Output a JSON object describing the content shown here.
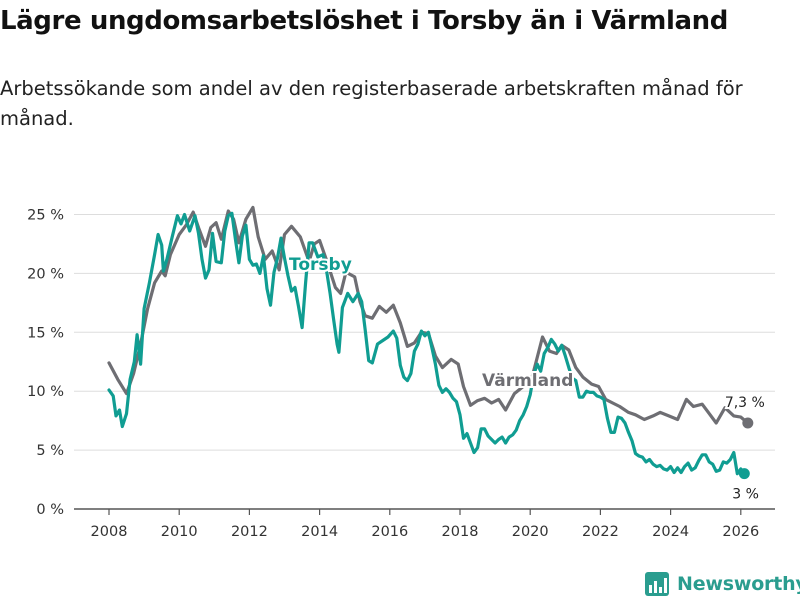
{
  "title": "Lägre ungdomsarbetslöshet i Torsby än i Värmland",
  "subtitle": "Arbetssökande som andel av den registerbaserade arbetskraften månad för månad.",
  "brand": {
    "name": "Newsworthy",
    "icon": "newsworthy-logo-icon",
    "color": "#2a9d8f"
  },
  "chart_data": {
    "type": "line",
    "xlim": [
      2007.5,
      2026.8
    ],
    "ylim": [
      0,
      26
    ],
    "x_ticks": [
      2008,
      2010,
      2012,
      2014,
      2016,
      2018,
      2020,
      2022,
      2024,
      2026
    ],
    "x_tick_labels": [
      "2008",
      "2010",
      "2012",
      "2014",
      "2016",
      "2018",
      "2020",
      "2022",
      "2024",
      "2026"
    ],
    "y_ticks": [
      0,
      5,
      10,
      15,
      20,
      25
    ],
    "y_tick_labels": [
      "0 %",
      "5 %",
      "10 %",
      "15 %",
      "20 %",
      "25 %"
    ],
    "grid": "horizontal",
    "series": [
      {
        "name": "Värmland",
        "color": "#6e6e73",
        "end_label": "7,3 %",
        "points": [
          [
            2008.0,
            12.4
          ],
          [
            2008.25,
            11.0
          ],
          [
            2008.5,
            9.8
          ],
          [
            2008.7,
            11.5
          ],
          [
            2008.9,
            14.0
          ],
          [
            2009.1,
            17.0
          ],
          [
            2009.3,
            19.2
          ],
          [
            2009.5,
            20.2
          ],
          [
            2009.6,
            19.8
          ],
          [
            2009.75,
            21.6
          ],
          [
            2010.0,
            23.3
          ],
          [
            2010.2,
            24.1
          ],
          [
            2010.4,
            25.2
          ],
          [
            2010.55,
            23.9
          ],
          [
            2010.75,
            22.3
          ],
          [
            2010.9,
            23.9
          ],
          [
            2011.05,
            24.3
          ],
          [
            2011.2,
            22.9
          ],
          [
            2011.4,
            25.3
          ],
          [
            2011.55,
            24.6
          ],
          [
            2011.7,
            22.6
          ],
          [
            2011.9,
            24.6
          ],
          [
            2012.1,
            25.6
          ],
          [
            2012.25,
            23.1
          ],
          [
            2012.45,
            21.2
          ],
          [
            2012.65,
            21.9
          ],
          [
            2012.85,
            20.3
          ],
          [
            2013.0,
            23.3
          ],
          [
            2013.2,
            24.0
          ],
          [
            2013.45,
            23.1
          ],
          [
            2013.7,
            21.0
          ],
          [
            2013.85,
            22.5
          ],
          [
            2014.0,
            22.8
          ],
          [
            2014.2,
            21.1
          ],
          [
            2014.45,
            18.8
          ],
          [
            2014.6,
            18.3
          ],
          [
            2014.75,
            20.1
          ],
          [
            2015.0,
            19.7
          ],
          [
            2015.15,
            17.6
          ],
          [
            2015.3,
            16.4
          ],
          [
            2015.5,
            16.2
          ],
          [
            2015.7,
            17.2
          ],
          [
            2015.9,
            16.7
          ],
          [
            2016.1,
            17.3
          ],
          [
            2016.3,
            15.8
          ],
          [
            2016.5,
            13.8
          ],
          [
            2016.7,
            14.1
          ],
          [
            2016.9,
            15.0
          ],
          [
            2017.1,
            14.9
          ],
          [
            2017.3,
            13.0
          ],
          [
            2017.5,
            12.0
          ],
          [
            2017.75,
            12.7
          ],
          [
            2017.95,
            12.3
          ],
          [
            2018.1,
            10.4
          ],
          [
            2018.3,
            8.8
          ],
          [
            2018.5,
            9.2
          ],
          [
            2018.7,
            9.4
          ],
          [
            2018.9,
            9.0
          ],
          [
            2019.1,
            9.3
          ],
          [
            2019.3,
            8.4
          ],
          [
            2019.55,
            9.8
          ],
          [
            2019.8,
            10.4
          ],
          [
            2020.0,
            10.6
          ],
          [
            2020.15,
            12.3
          ],
          [
            2020.35,
            14.6
          ],
          [
            2020.55,
            13.4
          ],
          [
            2020.75,
            13.2
          ],
          [
            2020.9,
            13.9
          ],
          [
            2021.1,
            13.5
          ],
          [
            2021.3,
            12.0
          ],
          [
            2021.5,
            11.2
          ],
          [
            2021.75,
            10.6
          ],
          [
            2021.95,
            10.4
          ],
          [
            2022.15,
            9.3
          ],
          [
            2022.35,
            9.0
          ],
          [
            2022.55,
            8.7
          ],
          [
            2022.8,
            8.2
          ],
          [
            2023.0,
            8.0
          ],
          [
            2023.25,
            7.6
          ],
          [
            2023.5,
            7.9
          ],
          [
            2023.7,
            8.2
          ],
          [
            2023.95,
            7.9
          ],
          [
            2024.2,
            7.6
          ],
          [
            2024.45,
            9.3
          ],
          [
            2024.65,
            8.7
          ],
          [
            2024.9,
            8.9
          ],
          [
            2025.1,
            8.1
          ],
          [
            2025.3,
            7.3
          ],
          [
            2025.55,
            8.6
          ],
          [
            2025.8,
            7.9
          ],
          [
            2026.0,
            7.8
          ],
          [
            2026.2,
            7.3
          ]
        ]
      },
      {
        "name": "Torsby",
        "color": "#109d92",
        "end_label": "3 %",
        "points": [
          [
            2008.0,
            10.1
          ],
          [
            2008.12,
            9.6
          ],
          [
            2008.2,
            7.9
          ],
          [
            2008.3,
            8.4
          ],
          [
            2008.38,
            7.0
          ],
          [
            2008.5,
            8.1
          ],
          [
            2008.6,
            11.0
          ],
          [
            2008.72,
            12.5
          ],
          [
            2008.8,
            14.8
          ],
          [
            2008.9,
            12.3
          ],
          [
            2009.0,
            17.0
          ],
          [
            2009.15,
            19.2
          ],
          [
            2009.3,
            21.6
          ],
          [
            2009.4,
            23.3
          ],
          [
            2009.5,
            22.4
          ],
          [
            2009.55,
            20.2
          ],
          [
            2009.65,
            21.2
          ],
          [
            2009.8,
            23.1
          ],
          [
            2009.95,
            24.9
          ],
          [
            2010.05,
            24.2
          ],
          [
            2010.15,
            25.0
          ],
          [
            2010.3,
            23.6
          ],
          [
            2010.45,
            24.9
          ],
          [
            2010.55,
            23.4
          ],
          [
            2010.65,
            21.2
          ],
          [
            2010.75,
            19.6
          ],
          [
            2010.85,
            20.3
          ],
          [
            2010.95,
            23.4
          ],
          [
            2011.05,
            21.0
          ],
          [
            2011.2,
            20.9
          ],
          [
            2011.3,
            23.6
          ],
          [
            2011.4,
            24.9
          ],
          [
            2011.5,
            25.1
          ],
          [
            2011.6,
            22.9
          ],
          [
            2011.7,
            20.9
          ],
          [
            2011.8,
            23.2
          ],
          [
            2011.9,
            24.1
          ],
          [
            2012.0,
            21.2
          ],
          [
            2012.1,
            20.7
          ],
          [
            2012.2,
            20.8
          ],
          [
            2012.3,
            20.0
          ],
          [
            2012.4,
            21.5
          ],
          [
            2012.5,
            18.7
          ],
          [
            2012.6,
            17.3
          ],
          [
            2012.7,
            20.1
          ],
          [
            2012.8,
            21.3
          ],
          [
            2012.9,
            23.0
          ],
          [
            2013.0,
            21.3
          ],
          [
            2013.1,
            19.8
          ],
          [
            2013.2,
            18.5
          ],
          [
            2013.3,
            18.8
          ],
          [
            2013.4,
            17.2
          ],
          [
            2013.5,
            15.4
          ],
          [
            2013.6,
            19.2
          ],
          [
            2013.7,
            22.6
          ],
          [
            2013.8,
            22.6
          ],
          [
            2013.95,
            21.4
          ],
          [
            2014.1,
            21.6
          ],
          [
            2014.2,
            20.2
          ],
          [
            2014.3,
            18.3
          ],
          [
            2014.4,
            16.1
          ],
          [
            2014.5,
            14.0
          ],
          [
            2014.55,
            13.3
          ],
          [
            2014.65,
            17.1
          ],
          [
            2014.8,
            18.3
          ],
          [
            2014.95,
            17.6
          ],
          [
            2015.1,
            18.3
          ],
          [
            2015.2,
            17.6
          ],
          [
            2015.3,
            15.2
          ],
          [
            2015.4,
            12.6
          ],
          [
            2015.5,
            12.4
          ],
          [
            2015.65,
            14.0
          ],
          [
            2015.8,
            14.3
          ],
          [
            2015.95,
            14.6
          ],
          [
            2016.1,
            15.1
          ],
          [
            2016.2,
            14.5
          ],
          [
            2016.3,
            12.2
          ],
          [
            2016.4,
            11.2
          ],
          [
            2016.5,
            10.9
          ],
          [
            2016.6,
            11.5
          ],
          [
            2016.7,
            13.4
          ],
          [
            2016.8,
            14.0
          ],
          [
            2016.9,
            15.1
          ],
          [
            2017.0,
            14.7
          ],
          [
            2017.1,
            15.0
          ],
          [
            2017.2,
            13.7
          ],
          [
            2017.3,
            12.3
          ],
          [
            2017.4,
            10.5
          ],
          [
            2017.5,
            9.9
          ],
          [
            2017.6,
            10.2
          ],
          [
            2017.7,
            9.9
          ],
          [
            2017.8,
            9.4
          ],
          [
            2017.9,
            9.1
          ],
          [
            2018.0,
            8.0
          ],
          [
            2018.1,
            6.0
          ],
          [
            2018.2,
            6.4
          ],
          [
            2018.3,
            5.6
          ],
          [
            2018.4,
            4.8
          ],
          [
            2018.5,
            5.2
          ],
          [
            2018.6,
            6.8
          ],
          [
            2018.7,
            6.8
          ],
          [
            2018.8,
            6.2
          ],
          [
            2018.9,
            5.9
          ],
          [
            2019.0,
            5.6
          ],
          [
            2019.1,
            5.9
          ],
          [
            2019.2,
            6.1
          ],
          [
            2019.3,
            5.6
          ],
          [
            2019.4,
            6.1
          ],
          [
            2019.5,
            6.3
          ],
          [
            2019.6,
            6.7
          ],
          [
            2019.7,
            7.5
          ],
          [
            2019.8,
            8.0
          ],
          [
            2019.9,
            8.7
          ],
          [
            2020.0,
            9.7
          ],
          [
            2020.1,
            11.4
          ],
          [
            2020.2,
            12.3
          ],
          [
            2020.3,
            11.7
          ],
          [
            2020.4,
            13.2
          ],
          [
            2020.5,
            13.7
          ],
          [
            2020.6,
            14.4
          ],
          [
            2020.7,
            14.0
          ],
          [
            2020.8,
            13.4
          ],
          [
            2020.9,
            13.9
          ],
          [
            2021.0,
            13.0
          ],
          [
            2021.1,
            12.0
          ],
          [
            2021.2,
            11.1
          ],
          [
            2021.3,
            10.9
          ],
          [
            2021.4,
            9.5
          ],
          [
            2021.5,
            9.5
          ],
          [
            2021.6,
            10.0
          ],
          [
            2021.7,
            9.9
          ],
          [
            2021.8,
            9.9
          ],
          [
            2021.9,
            9.6
          ],
          [
            2022.0,
            9.5
          ],
          [
            2022.1,
            9.3
          ],
          [
            2022.2,
            7.7
          ],
          [
            2022.3,
            6.5
          ],
          [
            2022.4,
            6.5
          ],
          [
            2022.5,
            7.8
          ],
          [
            2022.6,
            7.7
          ],
          [
            2022.7,
            7.3
          ],
          [
            2022.8,
            6.5
          ],
          [
            2022.9,
            5.8
          ],
          [
            2023.0,
            4.7
          ],
          [
            2023.1,
            4.5
          ],
          [
            2023.2,
            4.4
          ],
          [
            2023.3,
            4.0
          ],
          [
            2023.4,
            4.2
          ],
          [
            2023.5,
            3.8
          ],
          [
            2023.6,
            3.6
          ],
          [
            2023.7,
            3.7
          ],
          [
            2023.8,
            3.4
          ],
          [
            2023.9,
            3.3
          ],
          [
            2024.0,
            3.6
          ],
          [
            2024.1,
            3.1
          ],
          [
            2024.2,
            3.5
          ],
          [
            2024.3,
            3.1
          ],
          [
            2024.4,
            3.6
          ],
          [
            2024.5,
            3.9
          ],
          [
            2024.6,
            3.3
          ],
          [
            2024.7,
            3.5
          ],
          [
            2024.8,
            4.1
          ],
          [
            2024.9,
            4.6
          ],
          [
            2025.0,
            4.6
          ],
          [
            2025.1,
            4.0
          ],
          [
            2025.2,
            3.8
          ],
          [
            2025.3,
            3.2
          ],
          [
            2025.4,
            3.3
          ],
          [
            2025.5,
            4.0
          ],
          [
            2025.6,
            3.9
          ],
          [
            2025.7,
            4.2
          ],
          [
            2025.8,
            4.8
          ],
          [
            2025.9,
            3.0
          ],
          [
            2026.0,
            3.4
          ],
          [
            2026.1,
            3.0
          ]
        ]
      }
    ]
  }
}
